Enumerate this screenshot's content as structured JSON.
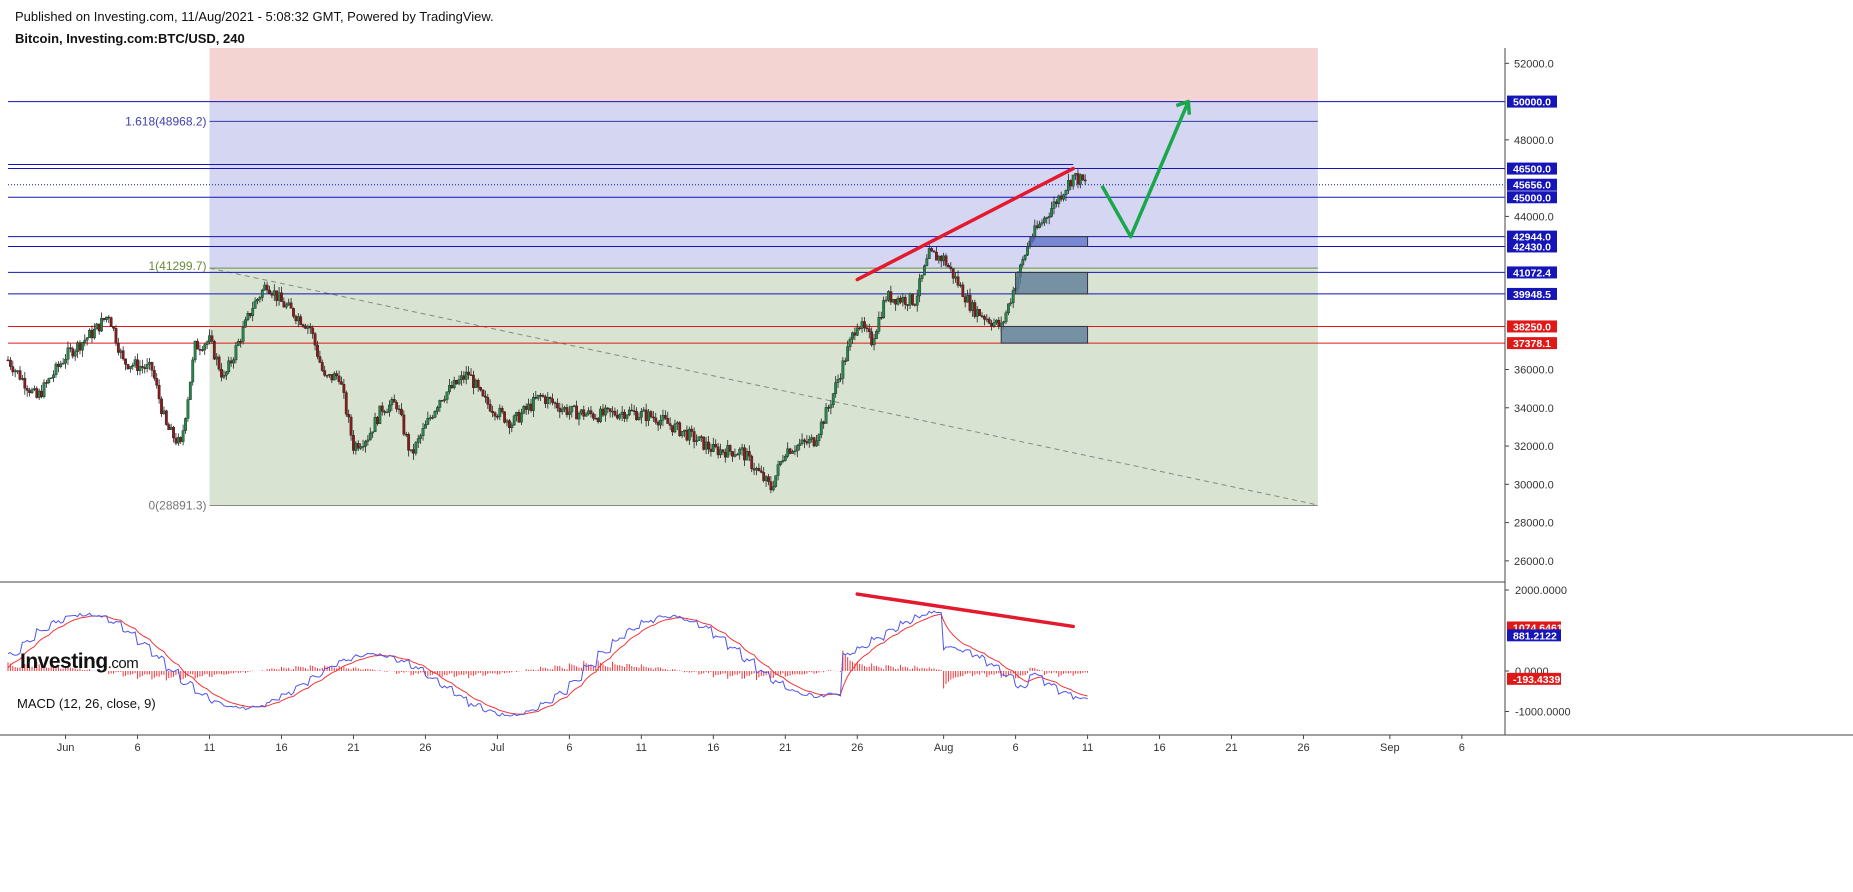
{
  "header": {
    "published": "Published on Investing.com, 11/Aug/2021 - 5:08:32 GMT, Powered by TradingView.",
    "symbol": "Bitcoin, Investing.com:BTC/USD, 240"
  },
  "logo": {
    "main": "Investing",
    "suffix": ".com"
  },
  "colors": {
    "candle_up": "#22894a",
    "candle_down": "#8b1a1a",
    "level_blue": "#1515b8",
    "level_red": "#e01818",
    "fib_zone_top": "#f4d3d3",
    "fib_zone_mid": "#d4d6f2",
    "fib_zone_low": "#d8e4d1",
    "trend_red": "#e3192d",
    "projection_green": "#1aa64a",
    "macd_blue": "#4e55ee",
    "macd_red": "#f0373a"
  },
  "price_axis": {
    "ticks": [
      "52000.0",
      "50000.0",
      "48000.0",
      "46500.0",
      "45656.0",
      "45000.0",
      "44000.0",
      "42944.0",
      "42430.0",
      "41072.4",
      "39948.5",
      "38250.0",
      "37378.1",
      "36000.0",
      "34000.0",
      "32000.0",
      "30000.0",
      "28000.0",
      "26000.0"
    ]
  },
  "time_axis": {
    "ticks": [
      "Jun",
      "6",
      "11",
      "16",
      "21",
      "26",
      "Jul",
      "6",
      "11",
      "16",
      "21",
      "26",
      "Aug",
      "6",
      "11",
      "16",
      "21",
      "26",
      "Sep",
      "6"
    ]
  },
  "levels": [
    {
      "label": "50000.0",
      "color": "blue"
    },
    {
      "label": "46500.0",
      "color": "blue"
    },
    {
      "label": "45656.0",
      "color": "blue"
    },
    {
      "label": "45000.0",
      "color": "blue"
    },
    {
      "label": "42944.0",
      "color": "blue"
    },
    {
      "label": "42430.0",
      "color": "blue"
    },
    {
      "label": "41072.4",
      "color": "blue"
    },
    {
      "label": "39948.5",
      "color": "blue"
    },
    {
      "label": "38250.0",
      "color": "red"
    },
    {
      "label": "37378.1",
      "color": "red"
    }
  ],
  "fib": {
    "level_1618": "1.618(48968.2)",
    "level_1": "1(41299.7)",
    "level_0": "0(28891.3)"
  },
  "macd": {
    "label": "MACD (12, 26, close, 9)",
    "ticks": [
      "2000.0000",
      "0.0000",
      "-1000.0000"
    ],
    "badges": [
      {
        "label": "1074.6461",
        "color": "red"
      },
      {
        "label": "881.2122",
        "color": "blue"
      },
      {
        "label": "-193.4339",
        "color": "red"
      }
    ]
  },
  "chart_data": {
    "type": "candlestick",
    "title": "Bitcoin, Investing.com:BTC/USD, 240",
    "ylim": [
      25000,
      52800
    ],
    "x_range": [
      "2021-05-28",
      "2021-09-09"
    ],
    "price_path": [
      [
        "2021-05-28",
        36500
      ],
      [
        "2021-05-30",
        34500
      ],
      [
        "2021-06-01",
        36700
      ],
      [
        "2021-06-03",
        38000
      ],
      [
        "2021-06-04",
        38900
      ],
      [
        "2021-06-05",
        36400
      ],
      [
        "2021-06-07",
        36000
      ],
      [
        "2021-06-08",
        33000
      ],
      [
        "2021-06-09",
        32000
      ],
      [
        "2021-06-10",
        37200
      ],
      [
        "2021-06-11",
        37500
      ],
      [
        "2021-06-12",
        35500
      ],
      [
        "2021-06-14",
        39300
      ],
      [
        "2021-06-15",
        40500
      ],
      [
        "2021-06-16",
        39500
      ],
      [
        "2021-06-18",
        38200
      ],
      [
        "2021-06-19",
        35500
      ],
      [
        "2021-06-20",
        35700
      ],
      [
        "2021-06-21",
        32000
      ],
      [
        "2021-06-22",
        32500
      ],
      [
        "2021-06-23",
        34000
      ],
      [
        "2021-06-24",
        34200
      ],
      [
        "2021-06-25",
        31500
      ],
      [
        "2021-06-27",
        34500
      ],
      [
        "2021-06-29",
        35800
      ],
      [
        "2021-06-30",
        34400
      ],
      [
        "2021-07-02",
        33200
      ],
      [
        "2021-07-04",
        34600
      ],
      [
        "2021-07-06",
        33800
      ],
      [
        "2021-07-08",
        33600
      ],
      [
        "2021-07-10",
        33800
      ],
      [
        "2021-07-12",
        33500
      ],
      [
        "2021-07-14",
        32700
      ],
      [
        "2021-07-16",
        31800
      ],
      [
        "2021-07-18",
        31700
      ],
      [
        "2021-07-20",
        29800
      ],
      [
        "2021-07-21",
        31800
      ],
      [
        "2021-07-23",
        32300
      ],
      [
        "2021-07-24",
        34000
      ],
      [
        "2021-07-26",
        38500
      ],
      [
        "2021-07-27",
        37500
      ],
      [
        "2021-07-28",
        39800
      ],
      [
        "2021-07-30",
        39600
      ],
      [
        "2021-07-31",
        42000
      ],
      [
        "2021-08-01",
        41800
      ],
      [
        "2021-08-03",
        39200
      ],
      [
        "2021-08-05",
        38200
      ],
      [
        "2021-08-06",
        40500
      ],
      [
        "2021-08-07",
        42800
      ],
      [
        "2021-08-09",
        45000
      ],
      [
        "2021-08-10",
        46100
      ],
      [
        "2021-08-11",
        45656
      ]
    ],
    "fib_retracement": {
      "from": 28891.3,
      "to": 41299.7,
      "extension": 48968.2
    },
    "trendline_highs": [
      [
        "2021-07-26",
        40700
      ],
      [
        "2021-08-10",
        46500
      ]
    ],
    "projection": [
      [
        "2021-08-12",
        45600
      ],
      [
        "2021-08-14",
        42944
      ],
      [
        "2021-08-18",
        50000
      ]
    ],
    "macd_divergence": [
      [
        "2021-07-26",
        1900
      ],
      [
        "2021-08-10",
        1100
      ]
    ]
  }
}
